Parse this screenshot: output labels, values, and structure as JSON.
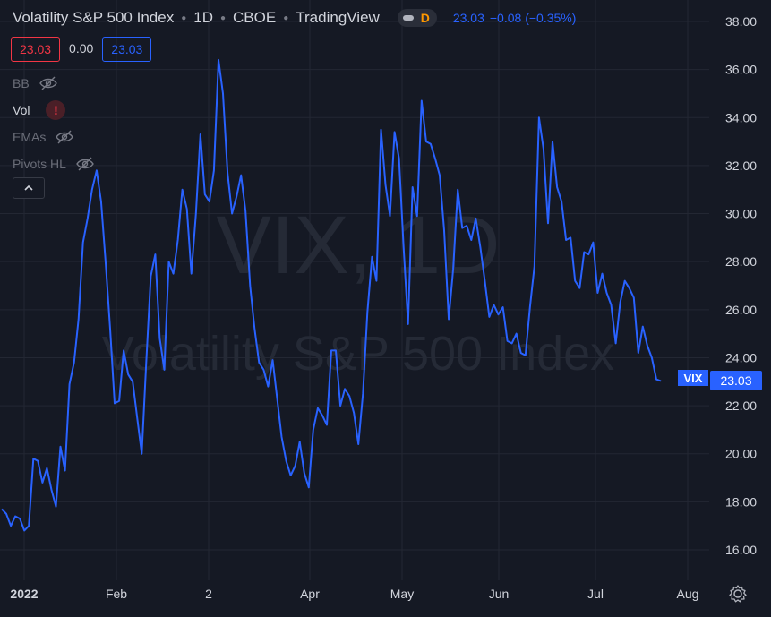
{
  "header": {
    "title": "Volatility S&P 500 Index",
    "interval": "1D",
    "exchange": "CBOE",
    "source": "TradingView",
    "status_badge": "D",
    "last": "23.03",
    "change": "−0.08 (−0.35%)"
  },
  "price_boxes": {
    "bid": "23.03",
    "spread": "0.00",
    "ask": "23.03"
  },
  "indicators": [
    {
      "label": "BB",
      "state": "hidden",
      "icon": "eye-off-icon"
    },
    {
      "label": "Vol",
      "state": "error",
      "icon": "error-icon",
      "badge": "!"
    },
    {
      "label": "EMAs",
      "state": "hidden",
      "icon": "eye-off-icon"
    },
    {
      "label": "Pivots HL",
      "state": "hidden",
      "icon": "eye-off-icon"
    }
  ],
  "watermark": {
    "symbol": "VIX, 1D",
    "name": "Volatility S&P 500 Index"
  },
  "symbol_tag": "VIX",
  "price_tag": "23.03",
  "colors": {
    "background": "#151924",
    "line": "#2962ff",
    "grid": "#232733",
    "text": "#d1d4dc",
    "negative": "#f23645",
    "badge": "#ff9800"
  },
  "chart_data": {
    "type": "line",
    "series": [
      {
        "values": [
          17.7,
          17.5,
          17.0,
          17.4,
          17.3,
          16.8,
          17.0,
          19.8,
          19.7,
          18.8,
          19.4,
          18.5,
          17.8,
          20.3,
          19.3,
          22.9,
          23.8,
          25.6,
          28.8,
          29.8,
          31.0,
          31.8,
          30.5,
          28.0,
          25.2,
          22.1,
          22.2,
          24.3,
          23.3,
          23.0,
          21.5,
          20.0,
          23.8,
          27.4,
          28.3,
          24.8,
          23.5,
          28.0,
          27.5,
          28.9,
          31.0,
          30.2,
          27.5,
          30.0,
          33.3,
          30.8,
          30.5,
          31.8,
          36.4,
          35.0,
          31.7,
          30.0,
          30.7,
          31.6,
          30.1,
          27.0,
          25.2,
          23.8,
          23.5,
          22.8,
          23.9,
          22.3,
          20.7,
          19.7,
          19.1,
          19.5,
          20.5,
          19.2,
          18.6,
          21.0,
          21.9,
          21.6,
          21.2,
          24.3,
          24.3,
          22.0,
          22.7,
          22.4,
          21.7,
          20.4,
          22.5,
          25.9,
          28.2,
          27.2,
          33.5,
          31.2,
          29.9,
          33.4,
          32.3,
          28.6,
          25.4,
          31.1,
          29.9,
          34.7,
          33.0,
          32.9,
          32.3,
          31.6,
          29.3,
          25.6,
          27.7,
          31.0,
          29.4,
          29.5,
          28.9,
          29.8,
          28.6,
          27.2,
          25.7,
          26.2,
          25.8,
          26.1,
          24.7,
          24.6,
          25.0,
          24.2,
          24.1,
          26.1,
          27.8,
          34.0,
          32.7,
          29.6,
          33.0,
          31.1,
          30.5,
          28.9,
          29.0,
          27.2,
          26.9,
          28.4,
          28.3,
          28.8,
          26.7,
          27.5,
          26.7,
          26.2,
          24.6,
          26.3,
          27.2,
          26.9,
          26.5,
          24.2,
          25.3,
          24.5,
          24.0,
          23.1,
          23.03
        ]
      }
    ],
    "x_tick_labels": [
      "2022",
      "Feb",
      "2",
      "Apr",
      "May",
      "Jun",
      "Jul",
      "Aug"
    ],
    "y_tick_labels": [
      "16.00",
      "18.00",
      "20.00",
      "22.00",
      "24.00",
      "26.00",
      "28.00",
      "30.00",
      "32.00",
      "34.00",
      "36.00",
      "38.00"
    ],
    "xlim": [
      "2022-01-03",
      "2022-08-12"
    ],
    "ylim": [
      15.0,
      38.5
    ],
    "grid": true,
    "price_line": 23.03
  }
}
